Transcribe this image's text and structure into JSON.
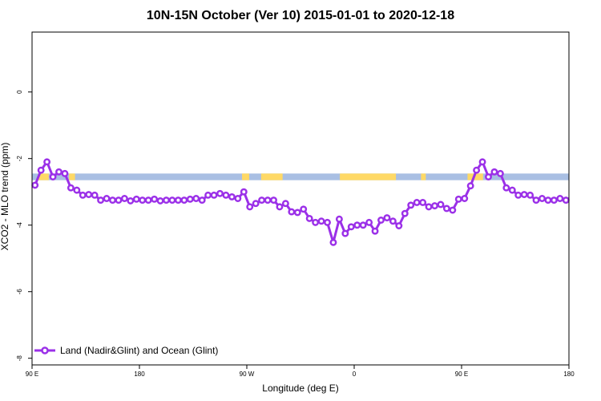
{
  "chart_data": {
    "type": "line",
    "title": "10N-15N October (Ver 10)   2015-01-01 to 2020-12-18",
    "xlabel": "Longitude (deg E)",
    "ylabel": "XCO2 - MLO trend (ppm)",
    "xlim": [
      90,
      540
    ],
    "ylim": [
      -8.2,
      1.8
    ],
    "x_ticks": [
      {
        "value": 90,
        "label": "90 E"
      },
      {
        "value": 180,
        "label": "180"
      },
      {
        "value": 270,
        "label": "90 W"
      },
      {
        "value": 360,
        "label": "0"
      },
      {
        "value": 450,
        "label": "90 E"
      },
      {
        "value": 540,
        "label": "180"
      }
    ],
    "y_ticks": [
      {
        "value": 0,
        "label": "0"
      },
      {
        "value": -2,
        "label": "-2"
      },
      {
        "value": -4,
        "label": "-4"
      },
      {
        "value": -6,
        "label": "-6"
      },
      {
        "value": -8,
        "label": "-8"
      }
    ],
    "legend": {
      "position": "bottom-left",
      "entries": [
        "Land (Nadir&Glint) and Ocean (Glint)"
      ]
    },
    "series": [
      {
        "name": "Land (Nadir&Glint) and Ocean (Glint)",
        "color": "#9B30E8",
        "x": [
          92.5,
          97.5,
          102.5,
          107.5,
          112.5,
          117.5,
          122.5,
          127.5,
          132.5,
          137.5,
          142.5,
          147.5,
          152.5,
          157.5,
          162.5,
          167.5,
          172.5,
          177.5,
          182.5,
          187.5,
          192.5,
          197.5,
          202.5,
          207.5,
          212.5,
          217.5,
          222.5,
          227.5,
          232.5,
          237.5,
          242.5,
          247.5,
          252.5,
          257.5,
          262.5,
          267.5,
          272.5,
          277.5,
          282.5,
          287.5,
          292.5,
          297.5,
          302.5,
          307.5,
          312.5,
          317.5,
          322.5,
          327.5,
          332.5,
          337.5,
          342.5,
          347.5,
          352.5,
          357.5,
          362.5,
          367.5,
          372.5,
          377.5,
          382.5,
          387.5,
          392.5,
          397.5,
          402.5,
          407.5,
          412.5,
          417.5,
          422.5,
          427.5,
          432.5,
          437.5,
          442.5,
          447.5,
          452.5,
          457.5,
          462.5,
          467.5,
          472.5,
          477.5,
          482.5,
          487.5,
          492.5,
          497.5,
          502.5,
          507.5,
          512.5,
          517.5,
          522.5,
          527.5,
          532.5,
          537.5
        ],
        "values": [
          -2.8,
          -2.35,
          -2.1,
          -2.55,
          -2.4,
          -2.45,
          -2.88,
          -2.95,
          -3.1,
          -3.08,
          -3.1,
          -3.25,
          -3.2,
          -3.25,
          -3.25,
          -3.2,
          -3.27,
          -3.22,
          -3.25,
          -3.25,
          -3.22,
          -3.27,
          -3.25,
          -3.25,
          -3.25,
          -3.25,
          -3.22,
          -3.2,
          -3.25,
          -3.1,
          -3.1,
          -3.05,
          -3.1,
          -3.15,
          -3.2,
          -3.0,
          -3.45,
          -3.35,
          -3.25,
          -3.25,
          -3.25,
          -3.45,
          -3.35,
          -3.6,
          -3.62,
          -3.52,
          -3.8,
          -3.92,
          -3.88,
          -3.92,
          -4.52,
          -3.82,
          -4.25,
          -4.05,
          -4.0,
          -4.0,
          -3.92,
          -4.18,
          -3.85,
          -3.78,
          -3.88,
          -4.02,
          -3.65,
          -3.4,
          -3.32,
          -3.32,
          -3.45,
          -3.42,
          -3.38,
          -3.5,
          -3.55,
          -3.22,
          -3.2,
          -2.82,
          -2.35,
          -2.1,
          -2.55,
          -2.4,
          -2.45,
          -2.88,
          -2.95,
          -3.1,
          -3.08,
          -3.1,
          -3.25,
          -3.2,
          -3.25,
          -3.25,
          -3.2,
          -3.25
        ]
      }
    ],
    "surface_band": {
      "y_range": [
        -2.65,
        -2.45
      ],
      "ocean_color": "#A9BFE3",
      "land_color": "#FFD966",
      "land_segments": [
        [
          95,
          104
        ],
        [
          121,
          126
        ],
        [
          266,
          272
        ],
        [
          282,
          300
        ],
        [
          348,
          395
        ],
        [
          416,
          420
        ],
        [
          455,
          468
        ]
      ]
    }
  }
}
